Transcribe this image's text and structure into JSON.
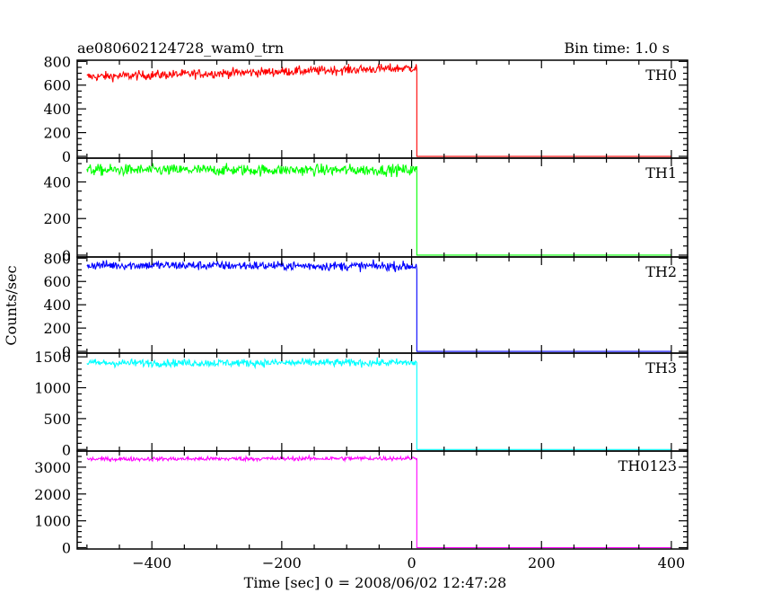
{
  "header": {
    "title": "ae080602124728_wam0_trn",
    "bin_time": "Bin time: 1.0 s"
  },
  "chart_data": {
    "type": "line",
    "xlabel": "Time [sec] 0 = 2008/06/02 12:47:28",
    "ylabel": "Counts/sec",
    "xlim": [
      -515,
      425
    ],
    "x_ticks": [
      -400,
      -200,
      0,
      200,
      400
    ],
    "x_tick_labels": [
      "−400",
      "−200",
      "0",
      "200",
      "400"
    ],
    "step_time": 8,
    "data_start": -500,
    "data_end": 400,
    "panels": [
      {
        "name": "TH0",
        "color": "#ff0000",
        "ylim": [
          -15,
          810
        ],
        "y_ticks": [
          0,
          200,
          400,
          600,
          800
        ],
        "y_tick_labels": [
          "0",
          "200",
          "400",
          "600",
          "800"
        ],
        "y_minor_step": 50,
        "level_start": 670,
        "level_end": 745,
        "noise": 28,
        "after_value": 0
      },
      {
        "name": "TH1",
        "color": "#00ff00",
        "ylim": [
          -10,
          530
        ],
        "y_ticks": [
          0,
          200,
          400
        ],
        "y_tick_labels": [
          "0",
          "200",
          "400"
        ],
        "y_minor_step": 50,
        "level_start": 465,
        "level_end": 465,
        "noise": 22,
        "after_value": 0
      },
      {
        "name": "TH2",
        "color": "#0000ff",
        "ylim": [
          -15,
          810
        ],
        "y_ticks": [
          0,
          200,
          400,
          600,
          800
        ],
        "y_tick_labels": [
          "0",
          "200",
          "400",
          "600",
          "800"
        ],
        "y_minor_step": 50,
        "level_start": 740,
        "level_end": 730,
        "noise": 28,
        "after_value": 0
      },
      {
        "name": "TH3",
        "color": "#00ffff",
        "ylim": [
          -25,
          1560
        ],
        "y_ticks": [
          0,
          500,
          1000,
          1500
        ],
        "y_tick_labels": [
          "0",
          "500",
          "1000",
          "1500"
        ],
        "y_minor_step": 100,
        "level_start": 1400,
        "level_end": 1405,
        "noise": 45,
        "after_value": 0
      },
      {
        "name": "TH0123",
        "color": "#ff00ff",
        "ylim": [
          -50,
          3600
        ],
        "y_ticks": [
          0,
          1000,
          2000,
          3000
        ],
        "y_tick_labels": [
          "0",
          "1000",
          "2000",
          "3000"
        ],
        "y_minor_step": 200,
        "level_start": 3300,
        "level_end": 3330,
        "noise": 55,
        "after_value": 0
      }
    ]
  }
}
